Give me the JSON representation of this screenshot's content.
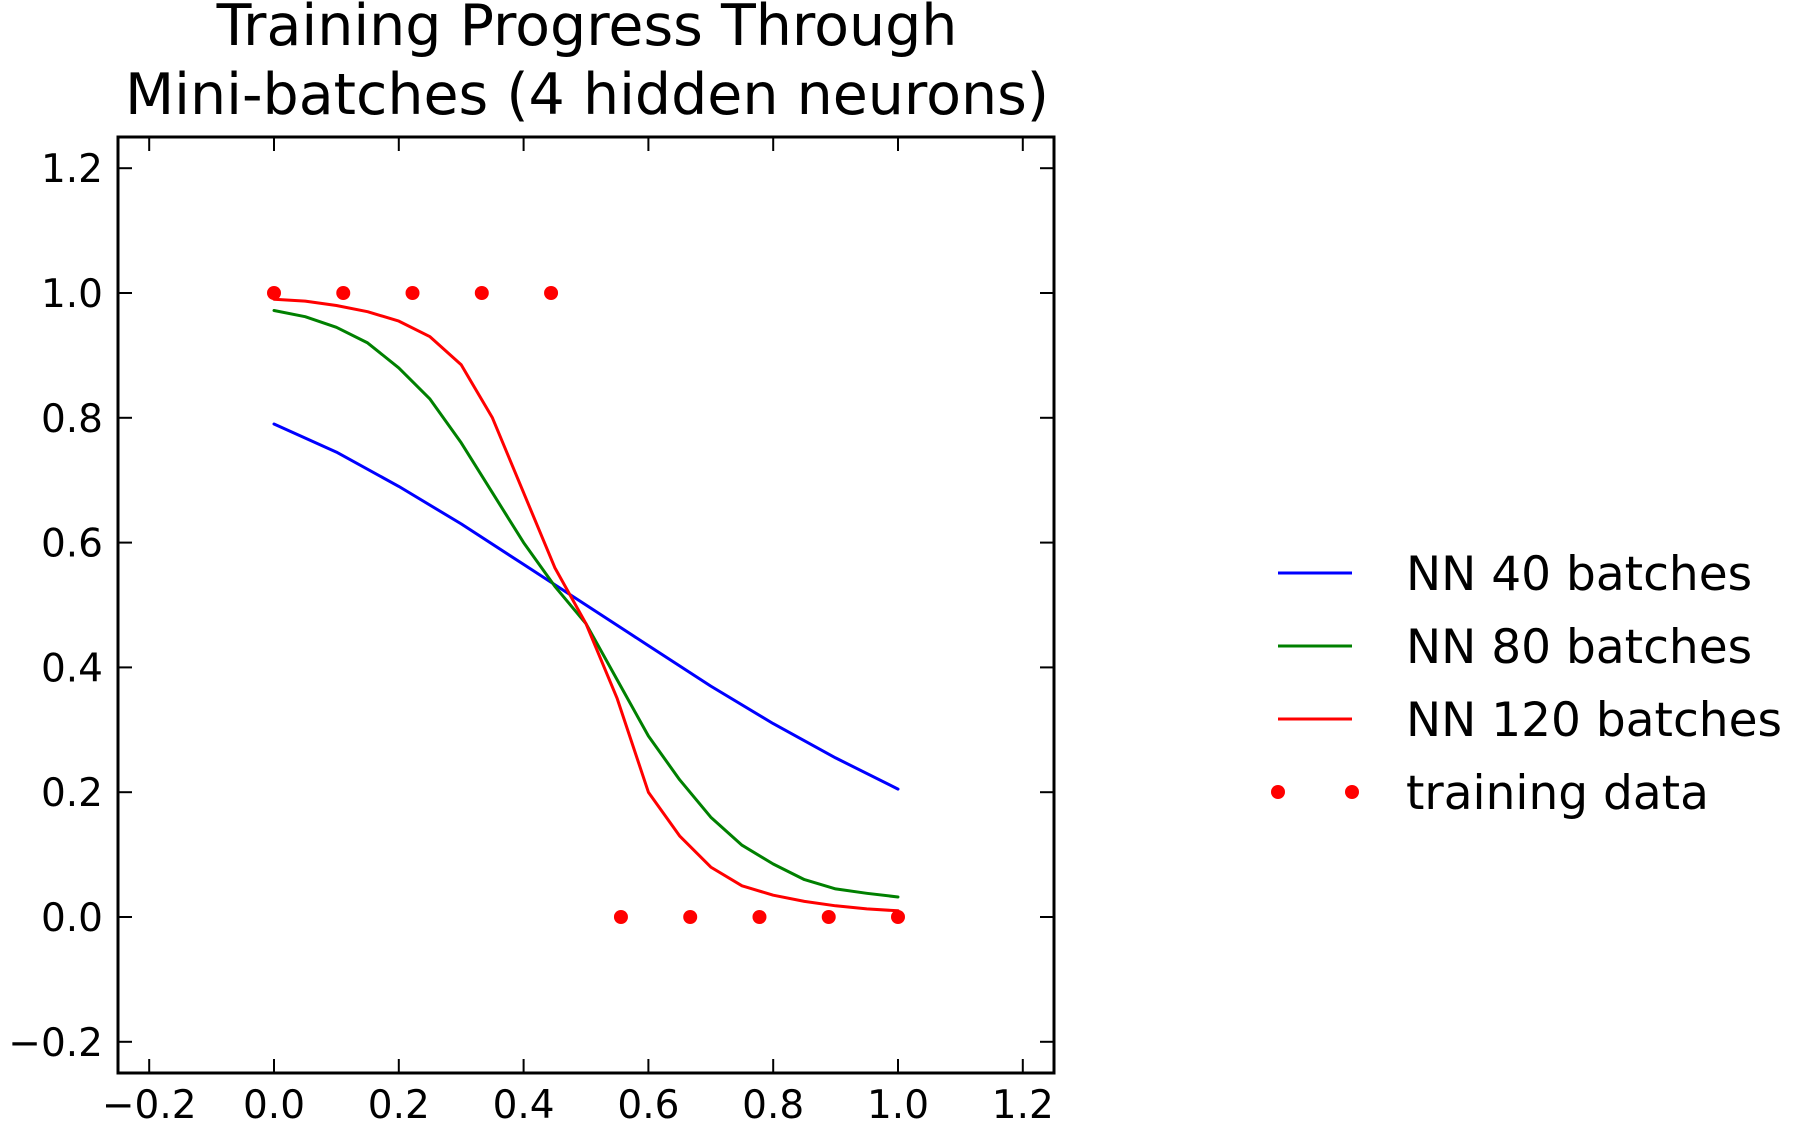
{
  "chart_data": {
    "type": "line",
    "title_lines": [
      "Training Progress Through",
      "Mini-batches (4 hidden neurons)"
    ],
    "xlabel": "",
    "ylabel": "",
    "xlim": [
      -0.25,
      1.25
    ],
    "ylim": [
      -0.25,
      1.25
    ],
    "xticks": [
      -0.2,
      0.0,
      0.2,
      0.4,
      0.6,
      0.8,
      1.0,
      1.2
    ],
    "yticks": [
      -0.2,
      0.0,
      0.2,
      0.4,
      0.6,
      0.8,
      1.0,
      1.2
    ],
    "xtick_labels": [
      "−0.2",
      "0.0",
      "0.2",
      "0.4",
      "0.6",
      "0.8",
      "1.0",
      "1.2"
    ],
    "ytick_labels": [
      "−0.2",
      "0.0",
      "0.2",
      "0.4",
      "0.6",
      "0.8",
      "1.0",
      "1.2"
    ],
    "grid": false,
    "legend_position": "outside-right",
    "x": [
      0.0,
      0.1,
      0.2,
      0.3,
      0.4,
      0.5,
      0.6,
      0.7,
      0.8,
      0.9,
      1.0
    ],
    "series": [
      {
        "name": "NN 40 batches",
        "color": "#0000ff",
        "style": "line",
        "x": [
          0.0,
          0.1,
          0.2,
          0.3,
          0.4,
          0.5,
          0.6,
          0.7,
          0.8,
          0.9,
          1.0
        ],
        "values": [
          0.79,
          0.745,
          0.69,
          0.63,
          0.565,
          0.5,
          0.435,
          0.37,
          0.31,
          0.255,
          0.205
        ]
      },
      {
        "name": "NN 80 batches",
        "color": "#008000",
        "style": "line",
        "x": [
          0.0,
          0.05,
          0.1,
          0.15,
          0.2,
          0.25,
          0.3,
          0.35,
          0.4,
          0.45,
          0.5,
          0.55,
          0.6,
          0.65,
          0.7,
          0.75,
          0.8,
          0.85,
          0.9,
          0.95,
          1.0
        ],
        "values": [
          0.972,
          0.962,
          0.945,
          0.92,
          0.88,
          0.83,
          0.76,
          0.68,
          0.6,
          0.53,
          0.47,
          0.38,
          0.29,
          0.22,
          0.16,
          0.115,
          0.085,
          0.06,
          0.045,
          0.038,
          0.032
        ]
      },
      {
        "name": "NN 120 batches",
        "color": "#ff0000",
        "style": "line",
        "x": [
          0.0,
          0.05,
          0.1,
          0.15,
          0.2,
          0.25,
          0.3,
          0.35,
          0.4,
          0.45,
          0.5,
          0.55,
          0.6,
          0.65,
          0.7,
          0.75,
          0.8,
          0.85,
          0.9,
          0.95,
          1.0
        ],
        "values": [
          0.99,
          0.987,
          0.98,
          0.97,
          0.955,
          0.93,
          0.885,
          0.8,
          0.68,
          0.56,
          0.47,
          0.35,
          0.2,
          0.13,
          0.08,
          0.05,
          0.035,
          0.025,
          0.018,
          0.013,
          0.01
        ]
      },
      {
        "name": "training data",
        "color": "#ff0000",
        "style": "dots",
        "x": [
          0.0,
          0.111,
          0.222,
          0.333,
          0.444,
          0.556,
          0.667,
          0.778,
          0.889,
          1.0
        ],
        "values": [
          1.0,
          1.0,
          1.0,
          1.0,
          1.0,
          0.0,
          0.0,
          0.0,
          0.0,
          0.0
        ]
      }
    ]
  }
}
